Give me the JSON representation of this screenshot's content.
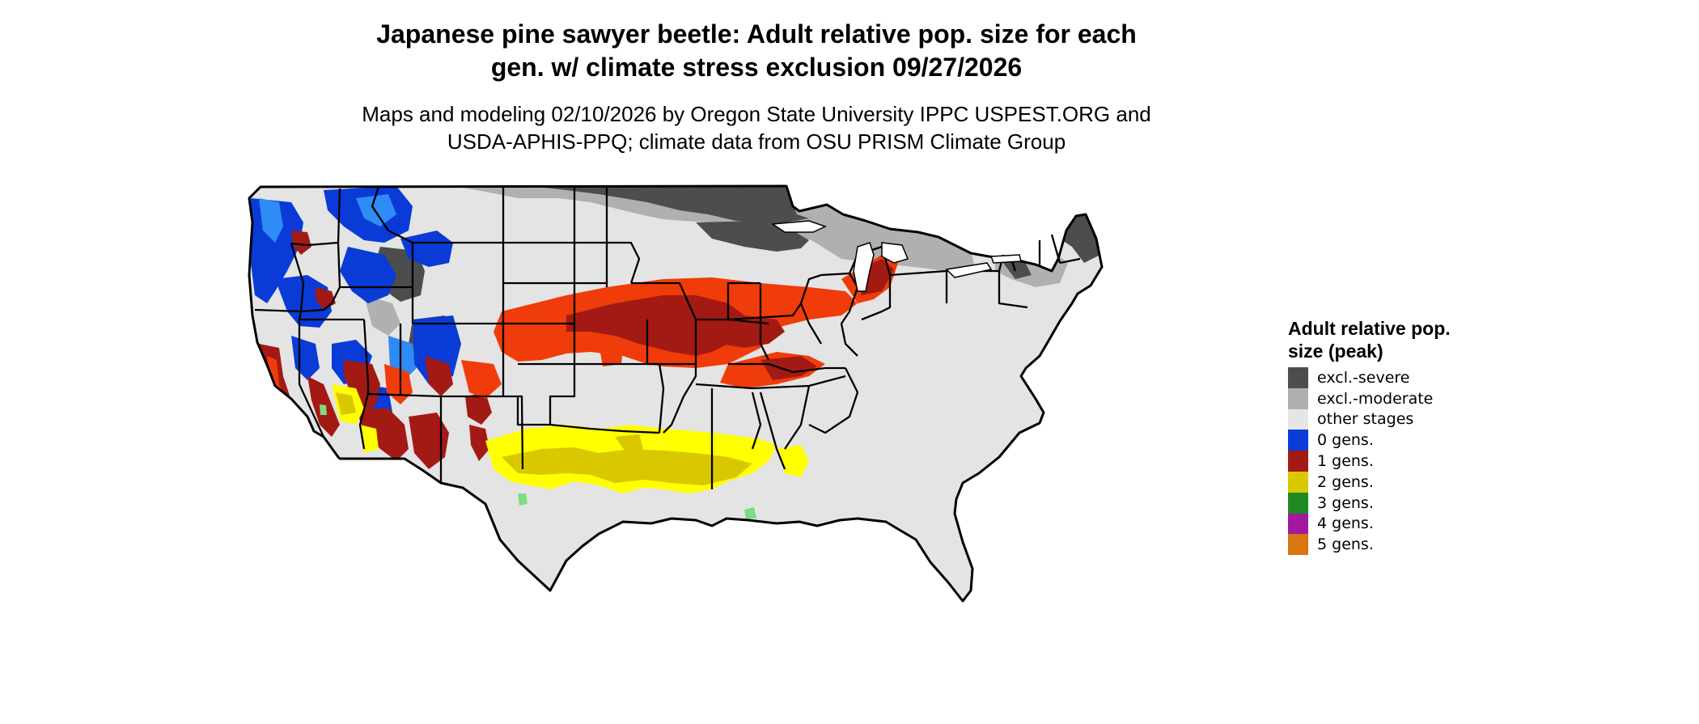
{
  "header": {
    "title_line1": "Japanese pine sawyer beetle: Adult relative pop. size for each",
    "title_line2": "gen. w/ climate stress exclusion 09/27/2026",
    "subtitle_line1": "Maps and modeling 02/10/2026 by Oregon State University IPPC USPEST.ORG and",
    "subtitle_line2": "USDA-APHIS-PPQ; climate data from OSU PRISM Climate Group"
  },
  "legend": {
    "title": "Adult relative pop. size (peak)",
    "items": [
      {
        "label": "excl.-severe",
        "color": "#4d4d4d"
      },
      {
        "label": "excl.-moderate",
        "color": "#b0b0b0"
      },
      {
        "label": "other stages",
        "color": "#e6e6e6"
      },
      {
        "label": "0 gens.",
        "color": "#0a3bd6"
      },
      {
        "label": "1 gens.",
        "color": "#a31a14"
      },
      {
        "label": "2 gens.",
        "color": "#d9c800"
      },
      {
        "label": "3 gens.",
        "color": "#1f8a24"
      },
      {
        "label": "4 gens.",
        "color": "#a2189e"
      },
      {
        "label": "5 gens.",
        "color": "#d97612"
      }
    ]
  },
  "map": {
    "region": "Contiguous United States",
    "colors": {
      "base": "#e4e4e4",
      "severe": "#4d4d4d",
      "moderate": "#b0b0b0",
      "zero_gens": "#0a3bd6",
      "zero_gens_light": "#2f8bf5",
      "one_gens": "#a31a14",
      "one_gens_bright": "#f03c0a",
      "two_gens": "#d9c800",
      "two_gens_bright": "#ffff00",
      "three_gens": "#7fdc7f",
      "border": "#000000",
      "lakes": "#ffffff"
    }
  }
}
